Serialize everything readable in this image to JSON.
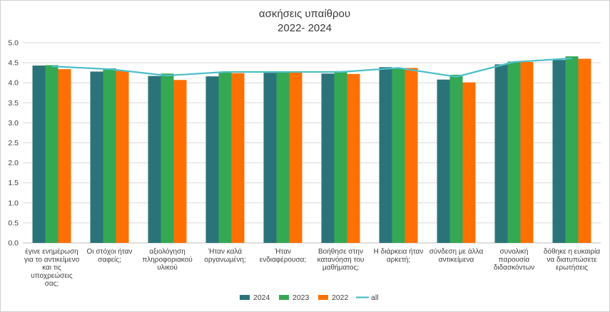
{
  "chart_data": {
    "type": "bar",
    "title": "ασκήσεις υπαίθρου",
    "subtitle": "2022- 2024",
    "ylim": [
      0,
      5
    ],
    "yticks": [
      "0.0",
      "0.5",
      "1.0",
      "1.5",
      "2.0",
      "2.5",
      "3.0",
      "3.5",
      "4.0",
      "4.5",
      "5.0"
    ],
    "grid": true,
    "legend_position": "bottom",
    "categories": [
      [
        "έγινε ενημέρωση",
        "για το αντικείμενο",
        "και τις",
        "υποχρεώσεις",
        "σας;"
      ],
      [
        "Οι στόχοι ήταν",
        "σαφείς;"
      ],
      [
        "αξιολόγηση",
        "πληροφοριακού",
        "υλικού"
      ],
      [
        "Ήταν καλά",
        "οργανωμένη;"
      ],
      [
        "Ήταν",
        "ενδιαφέρουσα;"
      ],
      [
        "Βοήθησε στην",
        "κατανόηση του",
        "μαθήματος;"
      ],
      [
        "Η διάρκεια ήταν",
        "αρκετή;"
      ],
      [
        "σύνδεση με άλλα",
        "αντικείμενα"
      ],
      [
        "συνολική",
        "παρουσία",
        "διδασκόντων"
      ],
      [
        "δόθηκε η ευκαιρία",
        "να διατυπώσετε",
        "ερωτήσεις"
      ]
    ],
    "series": [
      {
        "name": "2024",
        "kind": "bar",
        "color": "#2a7479",
        "values": [
          4.43,
          4.28,
          4.17,
          4.16,
          4.25,
          4.23,
          4.39,
          4.08,
          4.46,
          4.57
        ]
      },
      {
        "name": "2023",
        "kind": "bar",
        "color": "#35a853",
        "values": [
          4.44,
          4.36,
          4.23,
          4.27,
          4.27,
          4.29,
          4.37,
          4.2,
          4.53,
          4.66
        ]
      },
      {
        "name": "2022",
        "kind": "bar",
        "color": "#ff7002",
        "values": [
          4.34,
          4.3,
          4.07,
          4.24,
          4.26,
          4.22,
          4.37,
          4.01,
          4.52,
          4.6
        ]
      },
      {
        "name": "all",
        "kind": "line",
        "color": "#4fbfc8",
        "values": [
          4.41,
          4.34,
          4.18,
          4.27,
          4.27,
          4.27,
          4.37,
          4.15,
          4.52,
          4.61
        ]
      }
    ]
  }
}
